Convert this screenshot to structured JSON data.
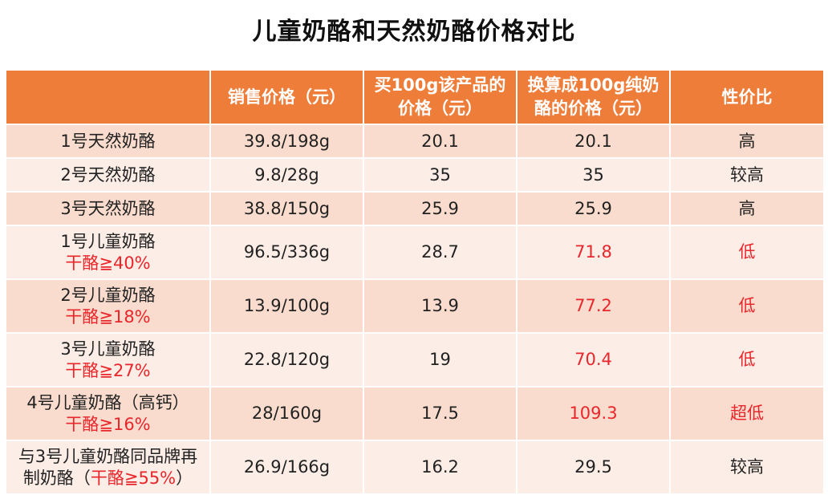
{
  "title": "儿童奶酪和天然奶酪价格对比",
  "headers": [
    "",
    "销售价格（元）",
    "买100g该产品的价格（元）",
    "换算成100g纯奶酪的价格（元）",
    "性价比"
  ],
  "header_lines": {
    "col2a": "买100g该产品的",
    "col2b": "价格（元）",
    "col3a": "换算成100g纯奶",
    "col3b": "酪的价格（元）"
  },
  "rows": [
    {
      "name": "1号天然奶酪",
      "sub": "",
      "price": "39.8/198g",
      "per100": "20.1",
      "pure100": "20.1",
      "value": "高",
      "red": false
    },
    {
      "name": "2号天然奶酪",
      "sub": "",
      "price": "9.8/28g",
      "per100": "35",
      "pure100": "35",
      "value": "较高",
      "red": false
    },
    {
      "name": "3号天然奶酪",
      "sub": "",
      "price": "38.8/150g",
      "per100": "25.9",
      "pure100": "25.9",
      "value": "高",
      "red": false
    },
    {
      "name": "1号儿童奶酪",
      "sub": "干酪≧40%",
      "price": "96.5/336g",
      "per100": "28.7",
      "pure100": "71.8",
      "value": "低",
      "red": true
    },
    {
      "name": "2号儿童奶酪",
      "sub": "干酪≧18%",
      "price": "13.9/100g",
      "per100": "13.9",
      "pure100": "77.2",
      "value": "低",
      "red": true
    },
    {
      "name": "3号儿童奶酪",
      "sub": "干酪≧27%",
      "price": "22.8/120g",
      "per100": "19",
      "pure100": "70.4",
      "value": "低",
      "red": true
    },
    {
      "name": "4号儿童奶酪（高钙）",
      "sub": "干酪≧16%",
      "price": "28/160g",
      "per100": "17.5",
      "pure100": "109.3",
      "value": "超低",
      "red": true
    },
    {
      "name": "与3号儿童奶酪同品牌再",
      "name2": "制奶酪（",
      "sub": "干酪≧55%",
      "name3": "）",
      "price": "26.9/166g",
      "per100": "16.2",
      "pure100": "29.5",
      "value": "较高",
      "red": false
    }
  ]
}
